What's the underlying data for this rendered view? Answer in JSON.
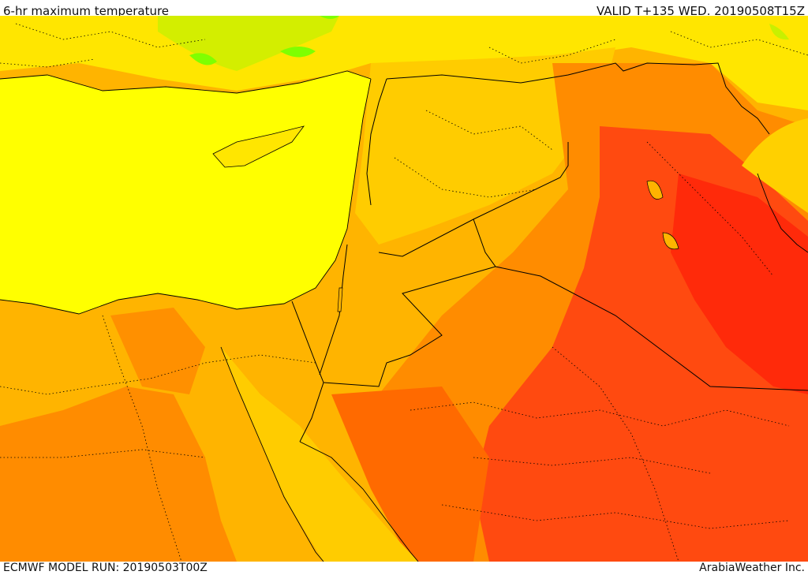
{
  "header": {
    "title": "6-hr maximum temperature",
    "valid_time": "VALID T+135 WED. 20190508T15Z"
  },
  "footer": {
    "model_run": "ECMWF MODEL RUN: 20190503T00Z",
    "credit": "ArabiaWeather Inc."
  },
  "map": {
    "colors": {
      "sea": "#ffff00",
      "cool_green": "#7fff00",
      "light_green": "#c8f000",
      "yellow_land": "#ffe600",
      "gold": "#ffcc00",
      "light_orange": "#ffb400",
      "orange": "#ff8c00",
      "dark_orange": "#ff6a00",
      "red_orange": "#ff4a10",
      "red": "#ff2a0a",
      "border": "#000000"
    }
  }
}
